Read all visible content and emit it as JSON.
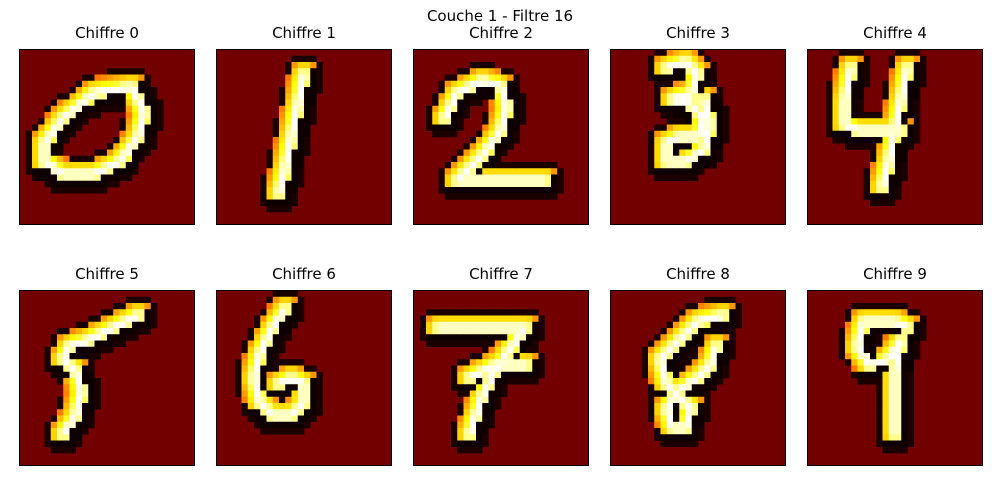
{
  "figure": {
    "title": "Couche 1 - Filtre 16"
  },
  "colors": {
    "background": "#720000",
    "colormap": "hot",
    "frame": "#000000"
  },
  "chart_data": {
    "type": "heatmap",
    "title": "Couche 1 - Filtre 16",
    "colormap": "hot",
    "axes_visible": false,
    "grid_size": [
      28,
      28
    ],
    "panels": [
      {
        "title": "Chiffre 0",
        "digit": 0
      },
      {
        "title": "Chiffre 1",
        "digit": 1
      },
      {
        "title": "Chiffre 2",
        "digit": 2
      },
      {
        "title": "Chiffre 3",
        "digit": 3
      },
      {
        "title": "Chiffre 4",
        "digit": 4
      },
      {
        "title": "Chiffre 5",
        "digit": 5
      },
      {
        "title": "Chiffre 6",
        "digit": 6
      },
      {
        "title": "Chiffre 7",
        "digit": 7
      },
      {
        "title": "Chiffre 8",
        "digit": 8
      },
      {
        "title": "Chiffre 9",
        "digit": 9
      }
    ]
  }
}
